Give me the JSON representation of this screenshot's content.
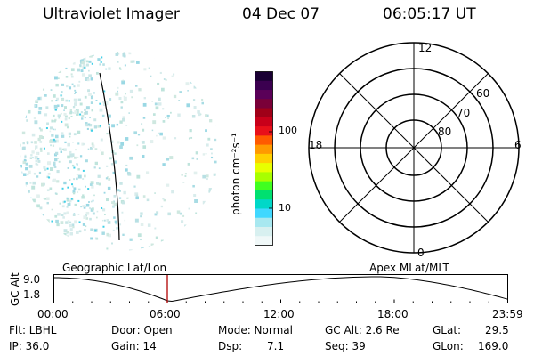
{
  "header": {
    "title": "Ultraviolet Imager",
    "date": "04 Dec 07",
    "time": "06:05:17 UT"
  },
  "colorbar": {
    "unit_label": "photon cm⁻²s⁻¹",
    "ticks": [
      "100",
      "10"
    ],
    "colors": [
      "#1a0033",
      "#3b0050",
      "#5a0058",
      "#7a0038",
      "#a00018",
      "#c8001a",
      "#e8101a",
      "#ff5a00",
      "#ff9a00",
      "#ffd000",
      "#e8ff00",
      "#a8ff00",
      "#40ff20",
      "#00e070",
      "#00d8c8",
      "#40d8ff",
      "#a8e8f0",
      "#d8f0f0",
      "#f0f8f8"
    ]
  },
  "polar": {
    "mlt_labels": {
      "top": "12",
      "left": "18",
      "right": "6",
      "bottom": "0"
    },
    "lat_labels": [
      "60",
      "70",
      "80"
    ]
  },
  "altitude_panel": {
    "left_title": "Geographic Lat/Lon",
    "right_title": "Apex MLat/MLT",
    "ylabel": "GC Alt",
    "y_ticks": [
      "9.0",
      "1.8"
    ],
    "x_ticks": [
      "00:00",
      "06:00",
      "12:00",
      "18:00",
      "23:59"
    ]
  },
  "info": {
    "flt": "Flt: LBHL",
    "ip": "IP: 36.0",
    "door": "Door: Open",
    "gain": "Gain: 14",
    "mode": "Mode: Normal",
    "dsp_label": "Dsp:",
    "dsp_value": "7.1",
    "gcalt": "GC Alt: 2.6 Re",
    "seq": "Seq: 39",
    "glat_label": "GLat:",
    "glat_value": "29.5",
    "glon_label": "GLon:",
    "glon_value": "169.0"
  }
}
